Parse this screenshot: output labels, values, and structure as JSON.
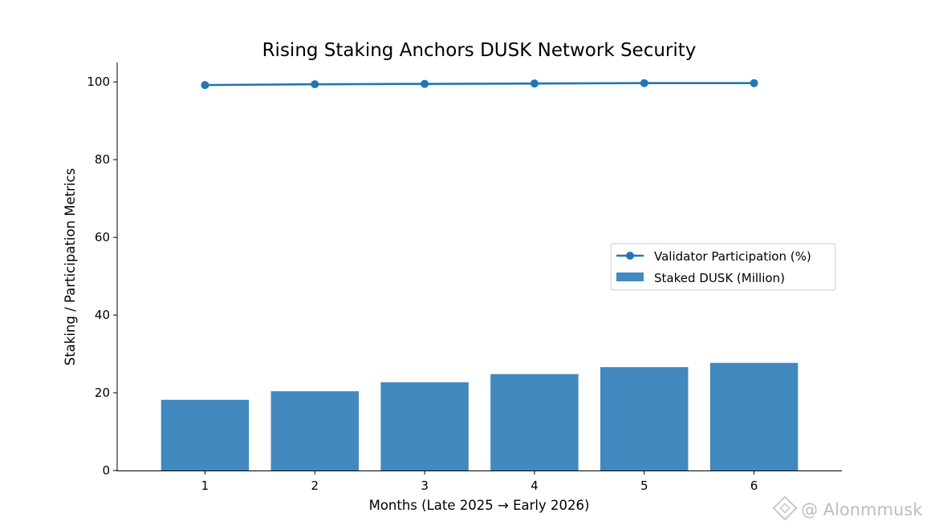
{
  "chart_data": {
    "type": "bar",
    "title": "Rising Staking Anchors DUSK Network Security",
    "xlabel": "Months (Late 2025 → Early 2026)",
    "ylabel": "Staking / Participation Metrics",
    "categories": [
      "1",
      "2",
      "3",
      "4",
      "5",
      "6"
    ],
    "yticks": [
      "0",
      "20",
      "40",
      "60",
      "80",
      "100"
    ],
    "ylim": [
      0,
      105
    ],
    "grid": false,
    "legend_position": "center-right",
    "series": [
      {
        "name": "Staked DUSK (Million)",
        "type": "bar",
        "color": "#4189bf",
        "values": [
          18.2,
          20.4,
          22.7,
          24.8,
          26.6,
          27.7
        ]
      },
      {
        "name": "Validator Participation (%)",
        "type": "line",
        "marker": "circle",
        "color": "#1f77b4",
        "values": [
          99.2,
          99.4,
          99.5,
          99.6,
          99.7,
          99.7
        ]
      }
    ]
  },
  "watermark": {
    "text": "@ Alonmmusk",
    "icon": "binance-diamond-icon"
  }
}
